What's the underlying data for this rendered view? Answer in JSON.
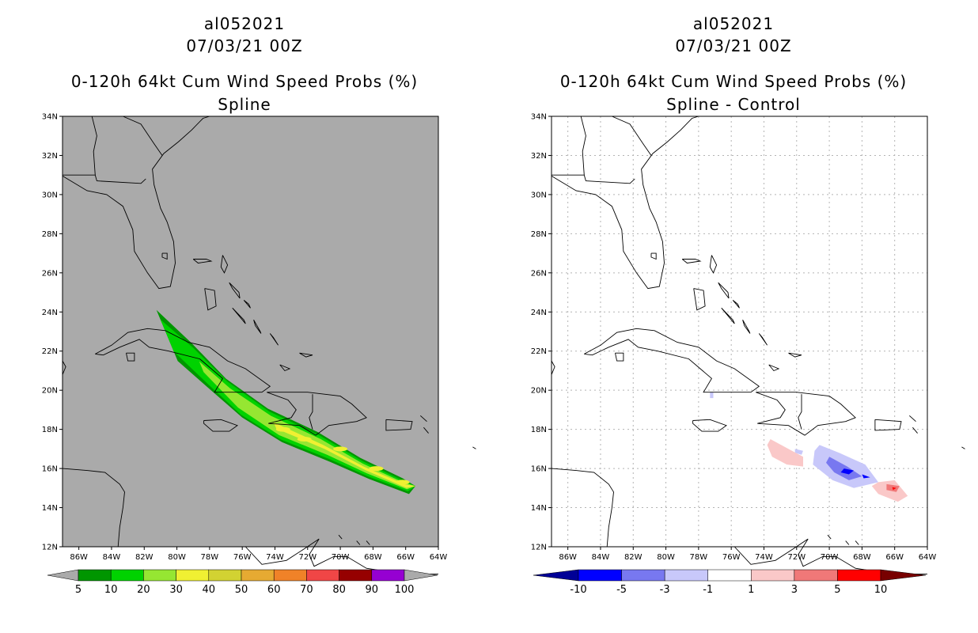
{
  "panels": [
    {
      "storm_id": "al052021",
      "datetime": "07/03/21 00Z",
      "product": "0-120h 64kt Cum Wind Speed Probs (%)",
      "subtitle": "Spline",
      "background_color": "#aaaaaa",
      "colorbar": {
        "labels": [
          "5",
          "10",
          "20",
          "30",
          "40",
          "50",
          "60",
          "70",
          "80",
          "90",
          "100"
        ],
        "colors": [
          "#009600",
          "#00d200",
          "#96e632",
          "#f0f032",
          "#d2d232",
          "#e6aa32",
          "#f08228",
          "#f04646",
          "#960000",
          "#9600d2"
        ]
      }
    },
    {
      "storm_id": "al052021",
      "datetime": "07/03/21 00Z",
      "product": "0-120h 64kt Cum Wind Speed Probs (%)",
      "subtitle": "Spline - Control",
      "background_color": "#ffffff",
      "colorbar": {
        "labels": [
          "-10",
          "-5",
          "-3",
          "-1",
          "1",
          "3",
          "5",
          "10"
        ],
        "colors": [
          "#0000ff",
          "#7878f0",
          "#c8c8fa",
          "#ffffff",
          "#fac8c8",
          "#f07878",
          "#ff0000"
        ],
        "end_colors": [
          "#000096",
          "#780000"
        ]
      }
    }
  ],
  "map": {
    "lat_labels": [
      "34N",
      "32N",
      "30N",
      "28N",
      "26N",
      "24N",
      "22N",
      "20N",
      "18N",
      "16N",
      "14N",
      "12N"
    ],
    "lon_labels": [
      "86W",
      "84W",
      "82W",
      "80W",
      "78W",
      "76W",
      "74W",
      "72W",
      "70W",
      "68W",
      "66W",
      "64W"
    ]
  }
}
